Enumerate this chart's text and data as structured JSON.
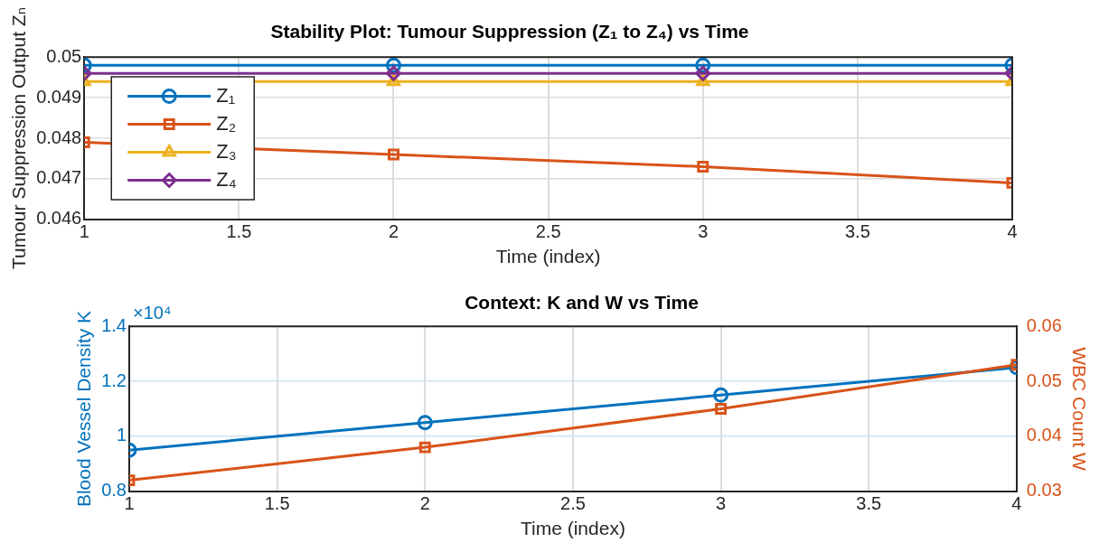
{
  "chart_data": [
    {
      "type": "line",
      "title": "Stability Plot: Tumour Suppression (Z₁ to Z₄) vs Time",
      "xlabel": "Time (index)",
      "ylabel": "Tumour Suppression Output Zₙ",
      "x": [
        1,
        2,
        3,
        4
      ],
      "xlim": [
        1,
        4
      ],
      "xticks": [
        1,
        1.5,
        2,
        2.5,
        3,
        3.5,
        4
      ],
      "ylim": [
        0.046,
        0.05
      ],
      "yticks": [
        0.046,
        0.047,
        0.048,
        0.049,
        0.05
      ],
      "grid": true,
      "legend": "left",
      "series": [
        {
          "name": "Z₁",
          "color": "#0072bd",
          "marker": "circle",
          "values": [
            0.0498,
            0.0498,
            0.0498,
            0.0498
          ]
        },
        {
          "name": "Z₂",
          "color": "#d95319",
          "marker": "square",
          "values": [
            0.0479,
            0.0476,
            0.0473,
            0.0469
          ]
        },
        {
          "name": "Z₃",
          "color": "#edb120",
          "marker": "triangle",
          "values": [
            0.0494,
            0.0494,
            0.0494,
            0.0494
          ]
        },
        {
          "name": "Z₄",
          "color": "#7e2f8e",
          "marker": "diamond",
          "values": [
            0.0496,
            0.0496,
            0.0496,
            0.0496
          ]
        }
      ]
    },
    {
      "type": "line",
      "title": "Context: K and W vs Time",
      "xlabel": "Time (index)",
      "ylabel": "Blood Vessel Density K",
      "y2label": "WBC Count W",
      "annotations": [
        "×10⁴"
      ],
      "x": [
        1,
        2,
        3,
        4
      ],
      "xlim": [
        1,
        4
      ],
      "xticks": [
        1,
        1.5,
        2,
        2.5,
        3,
        3.5,
        4
      ],
      "ylim": [
        0.8,
        1.4
      ],
      "yticks": [
        0.8,
        1,
        1.2,
        1.4
      ],
      "y2lim": [
        0.03,
        0.06
      ],
      "y2ticks": [
        0.03,
        0.04,
        0.05,
        0.06
      ],
      "grid": true,
      "legend": false,
      "series": [
        {
          "color": "#0072bd",
          "marker": "circle",
          "values": [
            0.95,
            1.05,
            1.15,
            1.25
          ]
        },
        {
          "color": "#d95319",
          "marker": "square",
          "axis": "y2",
          "values": [
            0.032,
            0.038,
            0.045,
            0.053
          ]
        }
      ]
    }
  ]
}
